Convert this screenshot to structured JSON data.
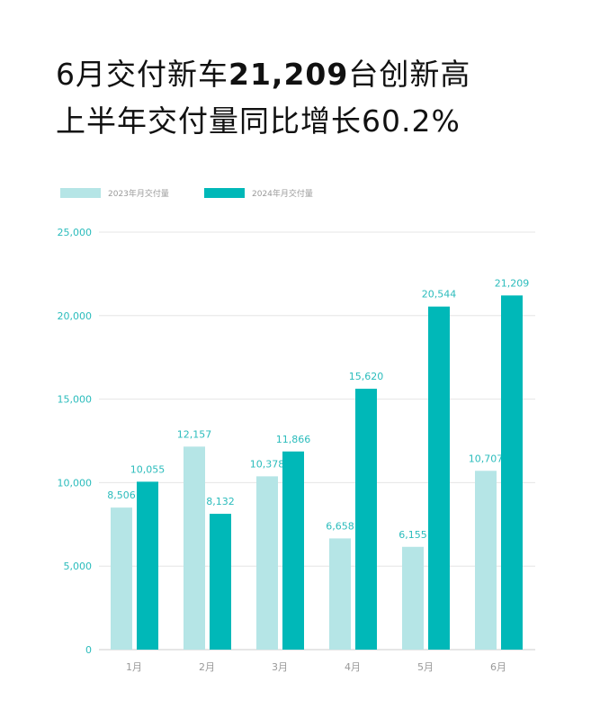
{
  "title": {
    "line1_prefix": "6月交付新车",
    "line1_bold": "21,209",
    "line1_suffix": "台创新高",
    "line2": "上半年交付量同比增长60.2%"
  },
  "chart_data": {
    "type": "bar",
    "categories": [
      "1月",
      "2月",
      "3月",
      "4月",
      "5月",
      "6月"
    ],
    "series": [
      {
        "name": "2023年月交付量",
        "color": "#b5e5e6",
        "values": [
          8506,
          12157,
          10378,
          6658,
          6155,
          10707
        ],
        "labels": [
          "8,506",
          "12,157",
          "10,378",
          "6,658",
          "6,155",
          "10,707"
        ]
      },
      {
        "name": "2024年月交付量",
        "color": "#00b8b8",
        "values": [
          10055,
          8132,
          11866,
          15620,
          20544,
          21209
        ],
        "labels": [
          "10,055",
          "8,132",
          "11,866",
          "15,620",
          "20,544",
          "21,209"
        ]
      }
    ],
    "ylim": [
      0,
      25000
    ],
    "yticks": [
      0,
      5000,
      10000,
      15000,
      20000,
      25000
    ],
    "ytick_labels": [
      "0",
      "5,000",
      "10,000",
      "15,000",
      "20,000",
      "25,000"
    ],
    "grid": true,
    "legend": "top-left",
    "label_color": "#2bbcbc"
  }
}
